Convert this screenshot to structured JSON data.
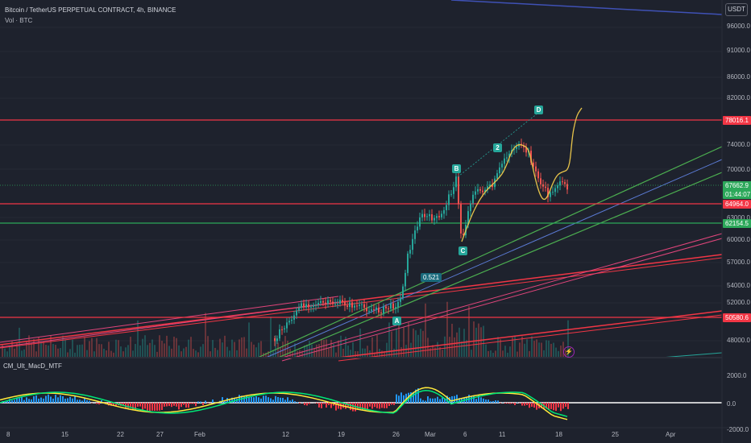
{
  "header": {
    "symbol_line": "Bitcoin / TetherUS PERPETUAL CONTRACT, 4h, BINANCE",
    "volume_label": "Vol · BTC",
    "currency": "USDT"
  },
  "price_axis": {
    "labels": [
      "96000.0",
      "91000.0",
      "86000.0",
      "82000.0",
      "74000.0",
      "70000.0",
      "63000.0",
      "60000.0",
      "57000.0",
      "54000.0",
      "52000.0",
      "48000.0"
    ]
  },
  "price_tags": {
    "level_78016": "78016.1",
    "current_price": "67662.9",
    "countdown": "01:44:07",
    "level_64964": "64964.0",
    "level_62154": "62154.5",
    "level_50580": "50580.6"
  },
  "wave_labels": {
    "A": "A",
    "B": "B",
    "C": "C",
    "D": "D",
    "two": "2"
  },
  "fib_label": "0.521",
  "indicator": {
    "name": "CM_Ult_MacD_MTF",
    "axis": [
      "2000.0",
      "0.0",
      "-2000.0"
    ]
  },
  "time_axis": {
    "labels": [
      "8",
      "15",
      "22",
      "27",
      "Feb",
      "12",
      "19",
      "26",
      "Mar",
      "6",
      "11",
      "18",
      "25",
      "Apr"
    ]
  },
  "colors": {
    "background": "#1e222d",
    "level_red": "#f23645",
    "level_green": "#2ca85a",
    "channel_green": "#4caf50",
    "channel_blue": "#5b7bd5",
    "channel_pink": "#e0457b",
    "projection": "#e6c34a",
    "candle_up": "#26a69a",
    "candle_down": "#ef5350",
    "macd_fast": "#00e676",
    "macd_slow": "#ffeb3b",
    "macd_hist_up": "#2196f3",
    "macd_hist_down": "#f23645"
  }
}
